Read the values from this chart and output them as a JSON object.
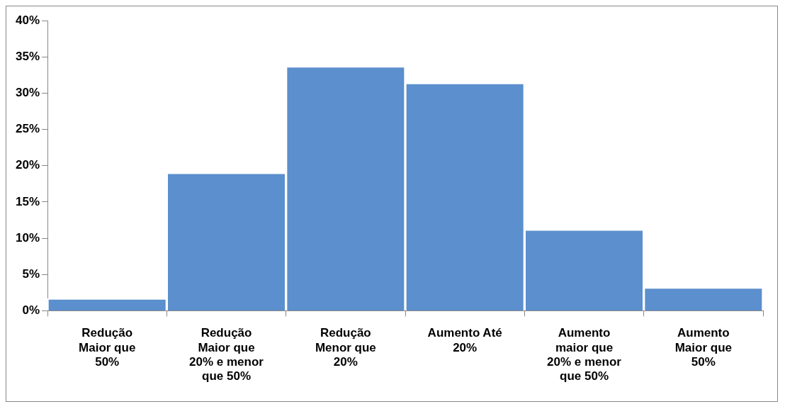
{
  "chart_data": {
    "type": "bar",
    "categories": [
      "Redução Maior que 50%",
      "Redução Maior que 20% e menor que 50%",
      "Redução Menor que 20%",
      "Aumento Até 20%",
      "Aumento maior que 20% e menor que 50%",
      "Aumento Maior que 50%"
    ],
    "values": [
      1.7,
      19.0,
      33.7,
      31.4,
      11.2,
      3.2
    ],
    "color": "#5b8fcd",
    "ylim": [
      0,
      40
    ],
    "yticks": [
      {
        "value": 0,
        "label": "0%"
      },
      {
        "value": 5,
        "label": "5%"
      },
      {
        "value": 10,
        "label": "10%"
      },
      {
        "value": 15,
        "label": "15%"
      },
      {
        "value": 20,
        "label": "20%"
      },
      {
        "value": 25,
        "label": "25%"
      },
      {
        "value": 30,
        "label": "30%"
      },
      {
        "value": 35,
        "label": "35%"
      },
      {
        "value": 40,
        "label": "40%"
      }
    ],
    "grid": false,
    "legend": false
  }
}
